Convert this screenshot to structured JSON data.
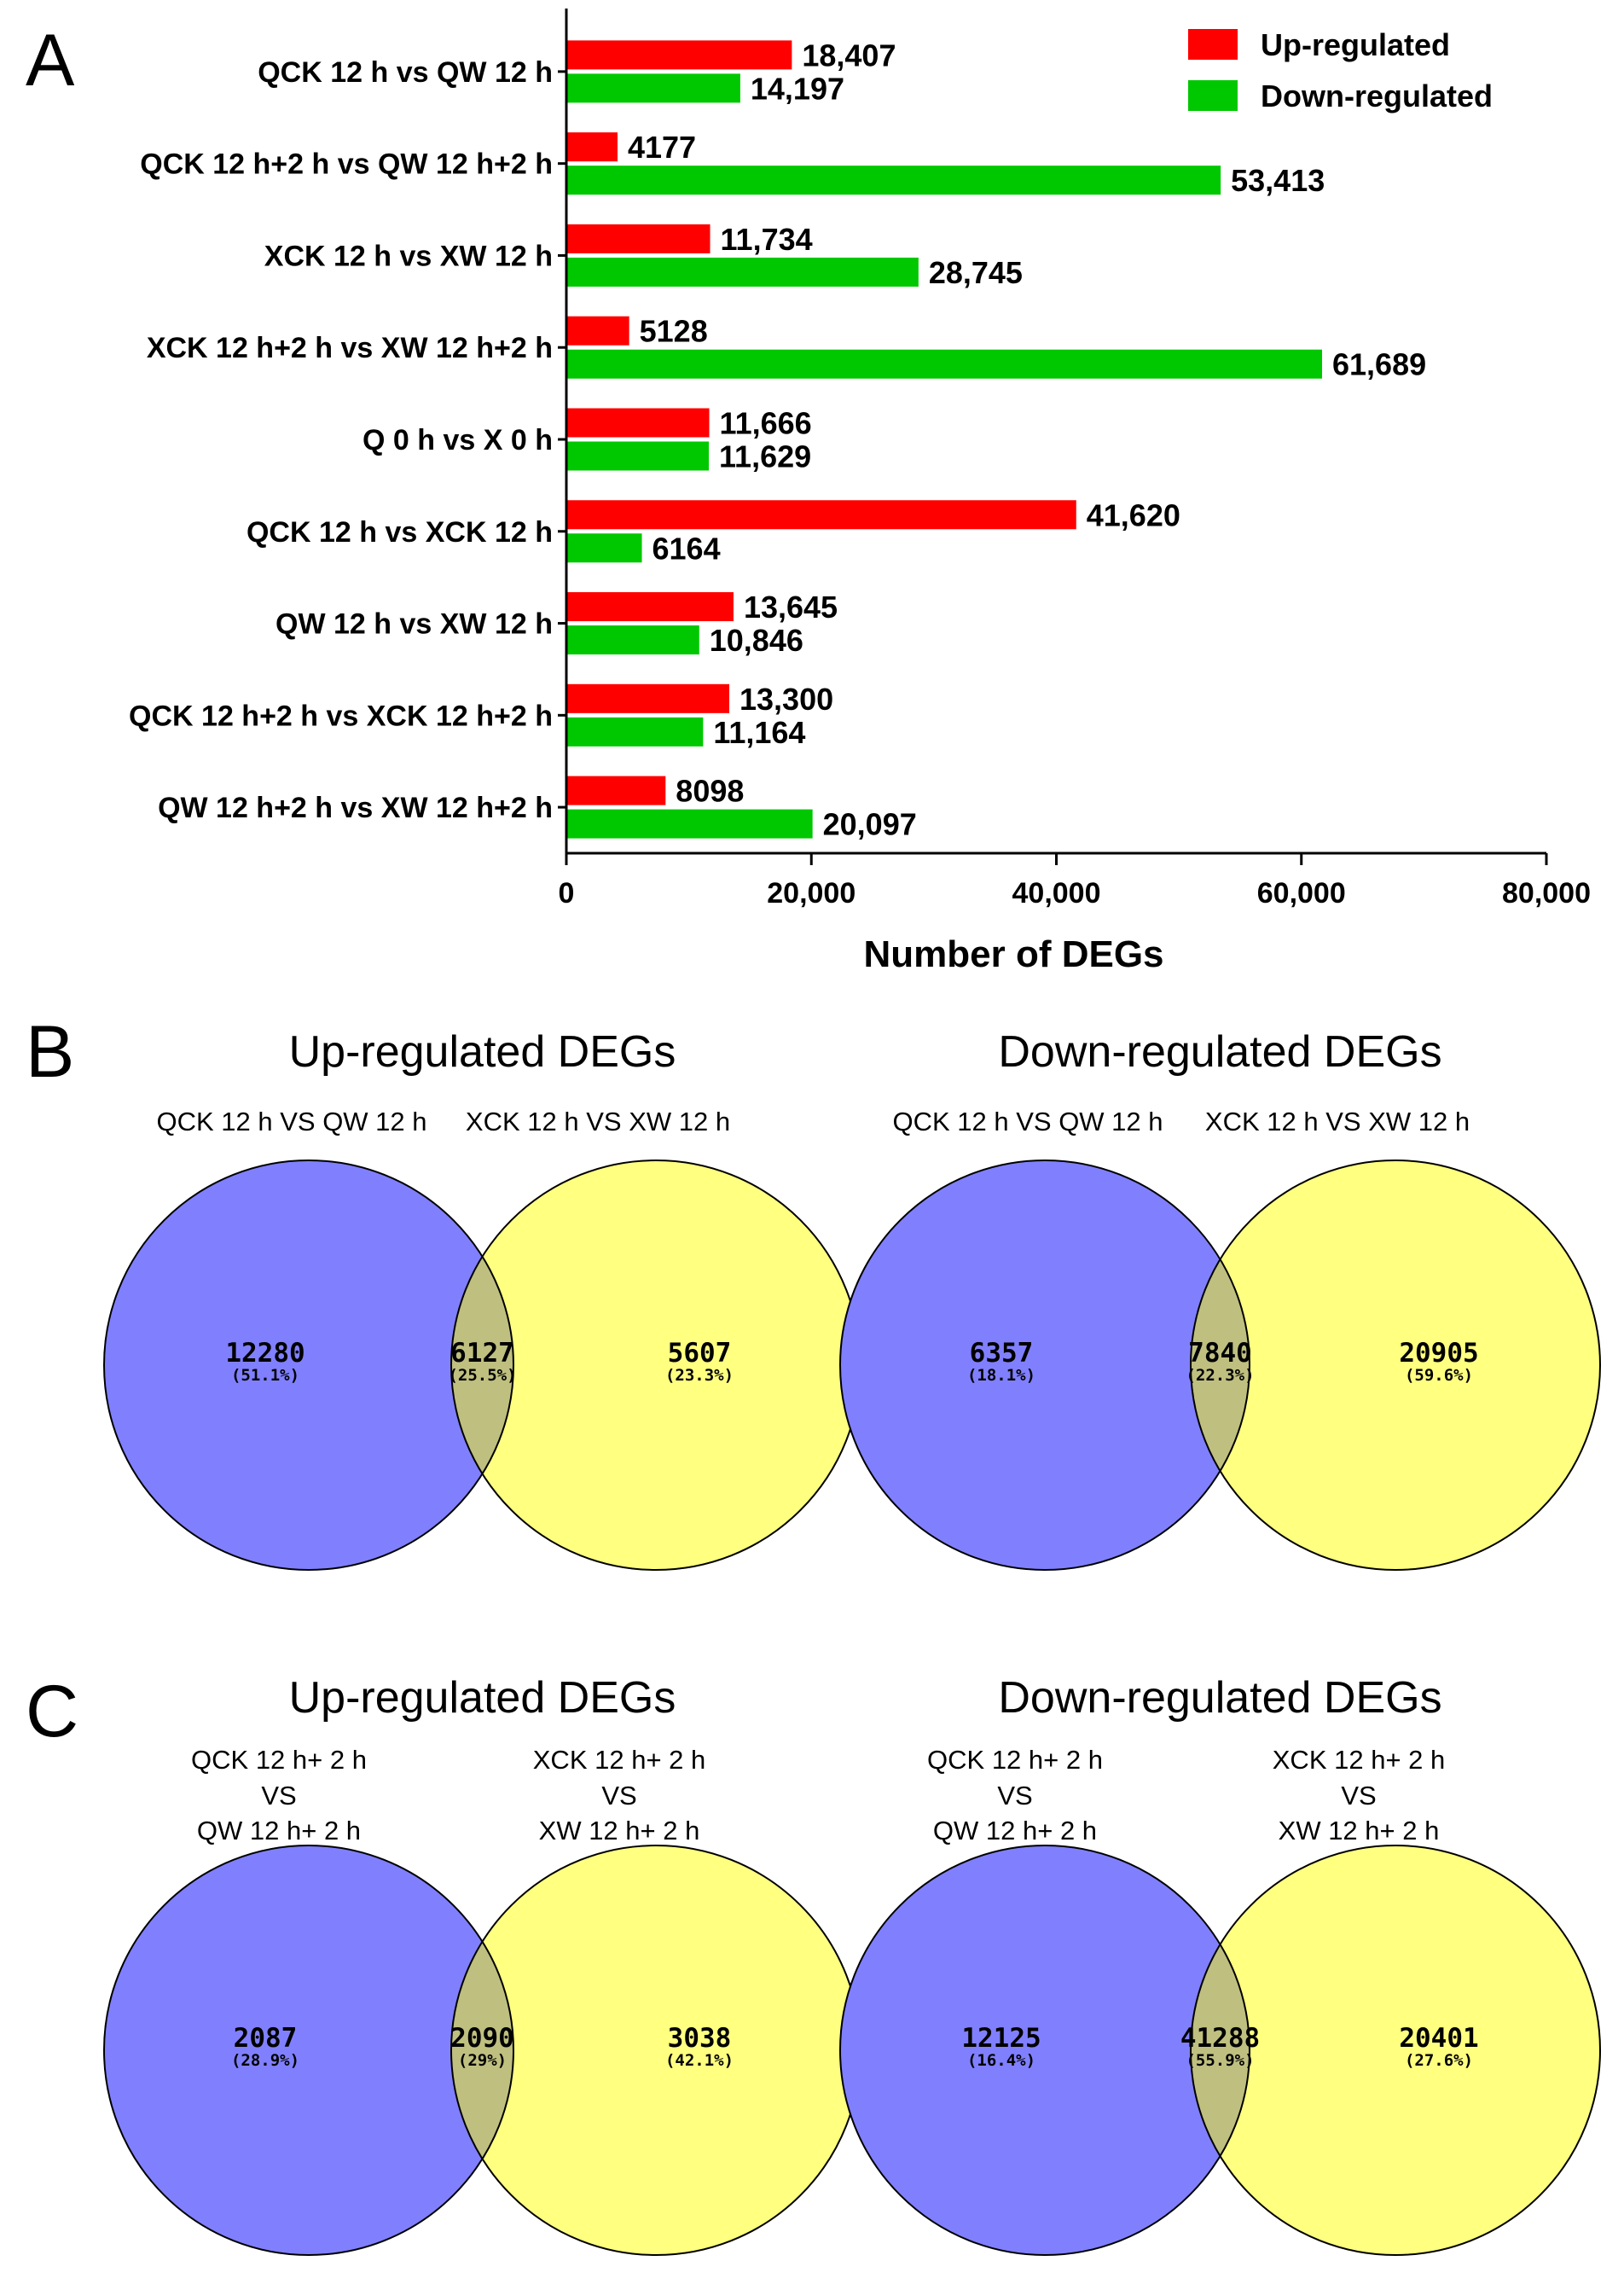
{
  "panel_letters": {
    "a": "A",
    "b": "B",
    "c": "C"
  },
  "chart_data": [
    {
      "type": "bar",
      "orientation": "horizontal",
      "xlabel": "Number of DEGs",
      "xlim": [
        0,
        80000
      ],
      "xticks": [
        "0",
        "20,000",
        "40,000",
        "60,000",
        "80,000"
      ],
      "legend_position": "top-right",
      "colors": {
        "up": "#ff0000",
        "down": "#00c800"
      },
      "categories": [
        "QCK 12 h vs QW 12 h",
        "QCK 12 h+2 h vs QW 12 h+2 h",
        "XCK 12 h vs XW 12 h",
        "XCK 12 h+2 h vs XW 12 h+2 h",
        "Q 0 h vs X 0 h",
        "QCK 12 h vs XCK 12 h",
        "QW 12 h vs XW 12 h",
        "QCK 12 h+2 h vs XCK 12 h+2 h",
        "QW 12 h+2 h vs XW 12 h+2 h"
      ],
      "series": [
        {
          "name": "Up-regulated",
          "values": [
            18407,
            4177,
            11734,
            5128,
            11666,
            41620,
            13645,
            13300,
            8098
          ],
          "labels": [
            "18,407",
            "4177",
            "11,734",
            "5128",
            "11,666",
            "41,620",
            "13,645",
            "13,300",
            "8098"
          ]
        },
        {
          "name": "Down-regulated",
          "values": [
            14197,
            53413,
            28745,
            61689,
            11629,
            6164,
            10846,
            11164,
            20097
          ],
          "labels": [
            "14,197",
            "53,413",
            "28,745",
            "61,689",
            "11,629",
            "6164",
            "10,846",
            "11,164",
            "20,097"
          ]
        }
      ]
    },
    {
      "type": "venn",
      "title": "Up-regulated DEGs",
      "set_labels": [
        [
          "QCK 12 h VS QW 12 h"
        ],
        [
          "XCK 12 h VS XW 12 h"
        ]
      ],
      "regions": [
        {
          "count": "12280",
          "pct": "(51.1%)"
        },
        {
          "count": "6127",
          "pct": "(25.5%)"
        },
        {
          "count": "5607",
          "pct": "(23.3%)"
        }
      ]
    },
    {
      "type": "venn",
      "title": "Down-regulated DEGs",
      "set_labels": [
        [
          "QCK 12 h VS QW 12 h"
        ],
        [
          "XCK 12 h VS XW 12 h"
        ]
      ],
      "regions": [
        {
          "count": "6357",
          "pct": "(18.1%)"
        },
        {
          "count": "7840",
          "pct": "(22.3%)"
        },
        {
          "count": "20905",
          "pct": "(59.6%)"
        }
      ]
    },
    {
      "type": "venn",
      "title": "Up-regulated DEGs",
      "set_labels": [
        [
          "QCK 12 h+ 2 h",
          "VS",
          "QW 12 h+ 2 h"
        ],
        [
          "XCK 12 h+ 2 h",
          "VS",
          "XW 12 h+ 2 h"
        ]
      ],
      "regions": [
        {
          "count": "2087",
          "pct": "(28.9%)"
        },
        {
          "count": "2090",
          "pct": "(29%)"
        },
        {
          "count": "3038",
          "pct": "(42.1%)"
        }
      ]
    },
    {
      "type": "venn",
      "title": "Down-regulated DEGs",
      "set_labels": [
        [
          "QCK 12 h+ 2 h",
          "VS",
          "QW 12 h+ 2 h"
        ],
        [
          "XCK 12 h+ 2 h",
          "VS",
          "XW 12 h+ 2 h"
        ]
      ],
      "regions": [
        {
          "count": "12125",
          "pct": "(16.4%)"
        },
        {
          "count": "41288",
          "pct": "(55.9%)"
        },
        {
          "count": "20401",
          "pct": "(27.6%)"
        }
      ]
    }
  ],
  "venn_colors": {
    "left": "#8080ff",
    "right": "#ffff80",
    "overlap": "#bfbf80"
  }
}
